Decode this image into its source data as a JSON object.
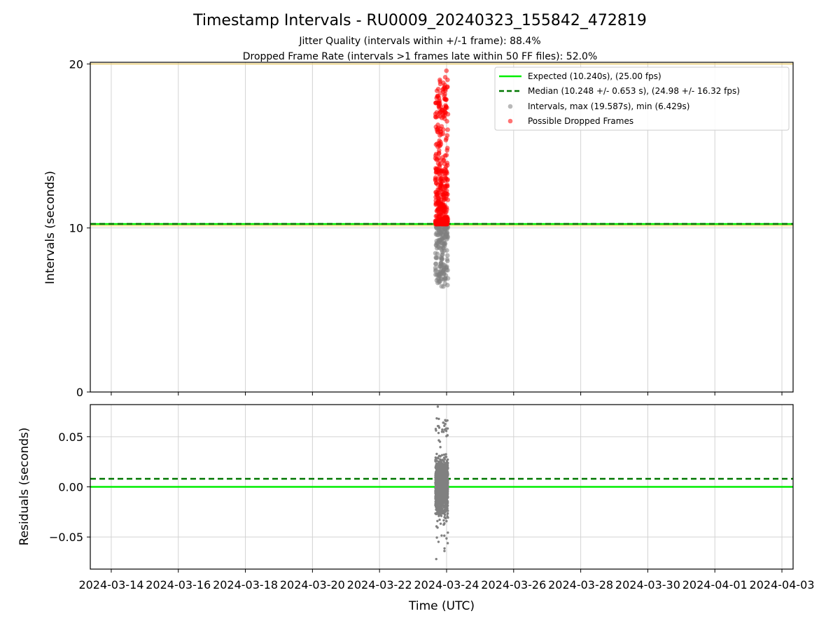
{
  "chart_data": [
    {
      "type": "scatter",
      "title": "Timestamp Intervals - RU0009_20240323_155842_472819",
      "subtitle_1": "Jitter Quality (intervals within +/-1 frame): 88.4%",
      "subtitle_2": "Dropped Frame Rate (intervals >1 frames late within 50 FF files): 52.0%",
      "xlabel": "",
      "ylabel": "Intervals (seconds)",
      "ylim": [
        0,
        20.1
      ],
      "y_ticks": [
        "0",
        "10",
        "20"
      ],
      "x_ticks": [
        "2024-03-14",
        "2024-03-16",
        "2024-03-18",
        "2024-03-20",
        "2024-03-22",
        "2024-03-24",
        "2024-03-26",
        "2024-03-28",
        "2024-03-30",
        "2024-04-01",
        "2024-04-03"
      ],
      "xlim": [
        "2024-03-13 09:00",
        "2024-04-03 08:00"
      ],
      "grid": true,
      "legend_position": "top-right",
      "expected_interval": 10.24,
      "median_interval": 10.248,
      "reference_band": [
        10.14,
        20.0
      ],
      "data_window": [
        "2024-03-23 15:58",
        "2024-03-24 01:00"
      ],
      "series": [
        {
          "name": "Expected (10.240s), (25.00 fps)",
          "color": "#00ee00",
          "style": "solid"
        },
        {
          "name": "Median (10.248 +/- 0.653 s), (24.98 +/- 16.32 fps)",
          "color": "#007700",
          "style": "dashed"
        },
        {
          "name": "Intervals, max (19.587s), min (6.429s)",
          "color": "#808080",
          "style": "marker",
          "max": 19.587,
          "min": 6.429
        },
        {
          "name": "Possible Dropped Frames",
          "color": "#ff0000",
          "style": "marker"
        }
      ]
    },
    {
      "type": "scatter",
      "xlabel": "Time (UTC)",
      "ylabel": "Residuals (seconds)",
      "ylim": [
        -0.082,
        0.082
      ],
      "y_ticks": [
        "0.05",
        "0.00",
        "−0.05"
      ],
      "grid": true,
      "residual_expected": 0.0,
      "residual_median": 0.008,
      "residual_range": [
        -0.072,
        0.08
      ]
    }
  ]
}
